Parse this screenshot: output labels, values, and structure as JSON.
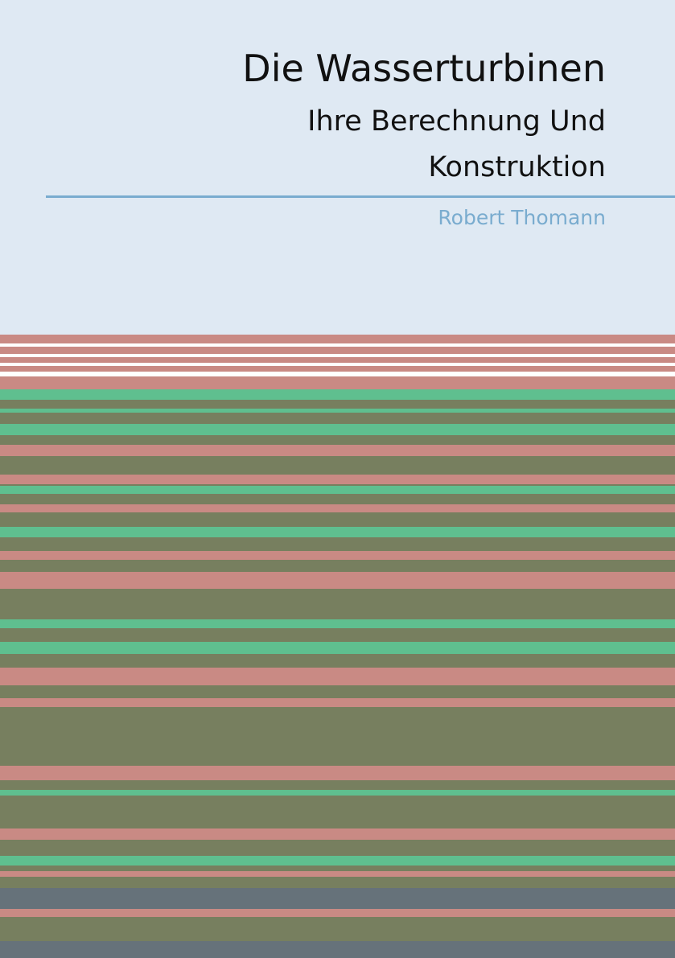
{
  "title": "Die Wasserturbinen",
  "subtitle": [
    "Ihre Berechnung Und",
    "Konstruktion"
  ],
  "author": "Robert Thomann"
}
